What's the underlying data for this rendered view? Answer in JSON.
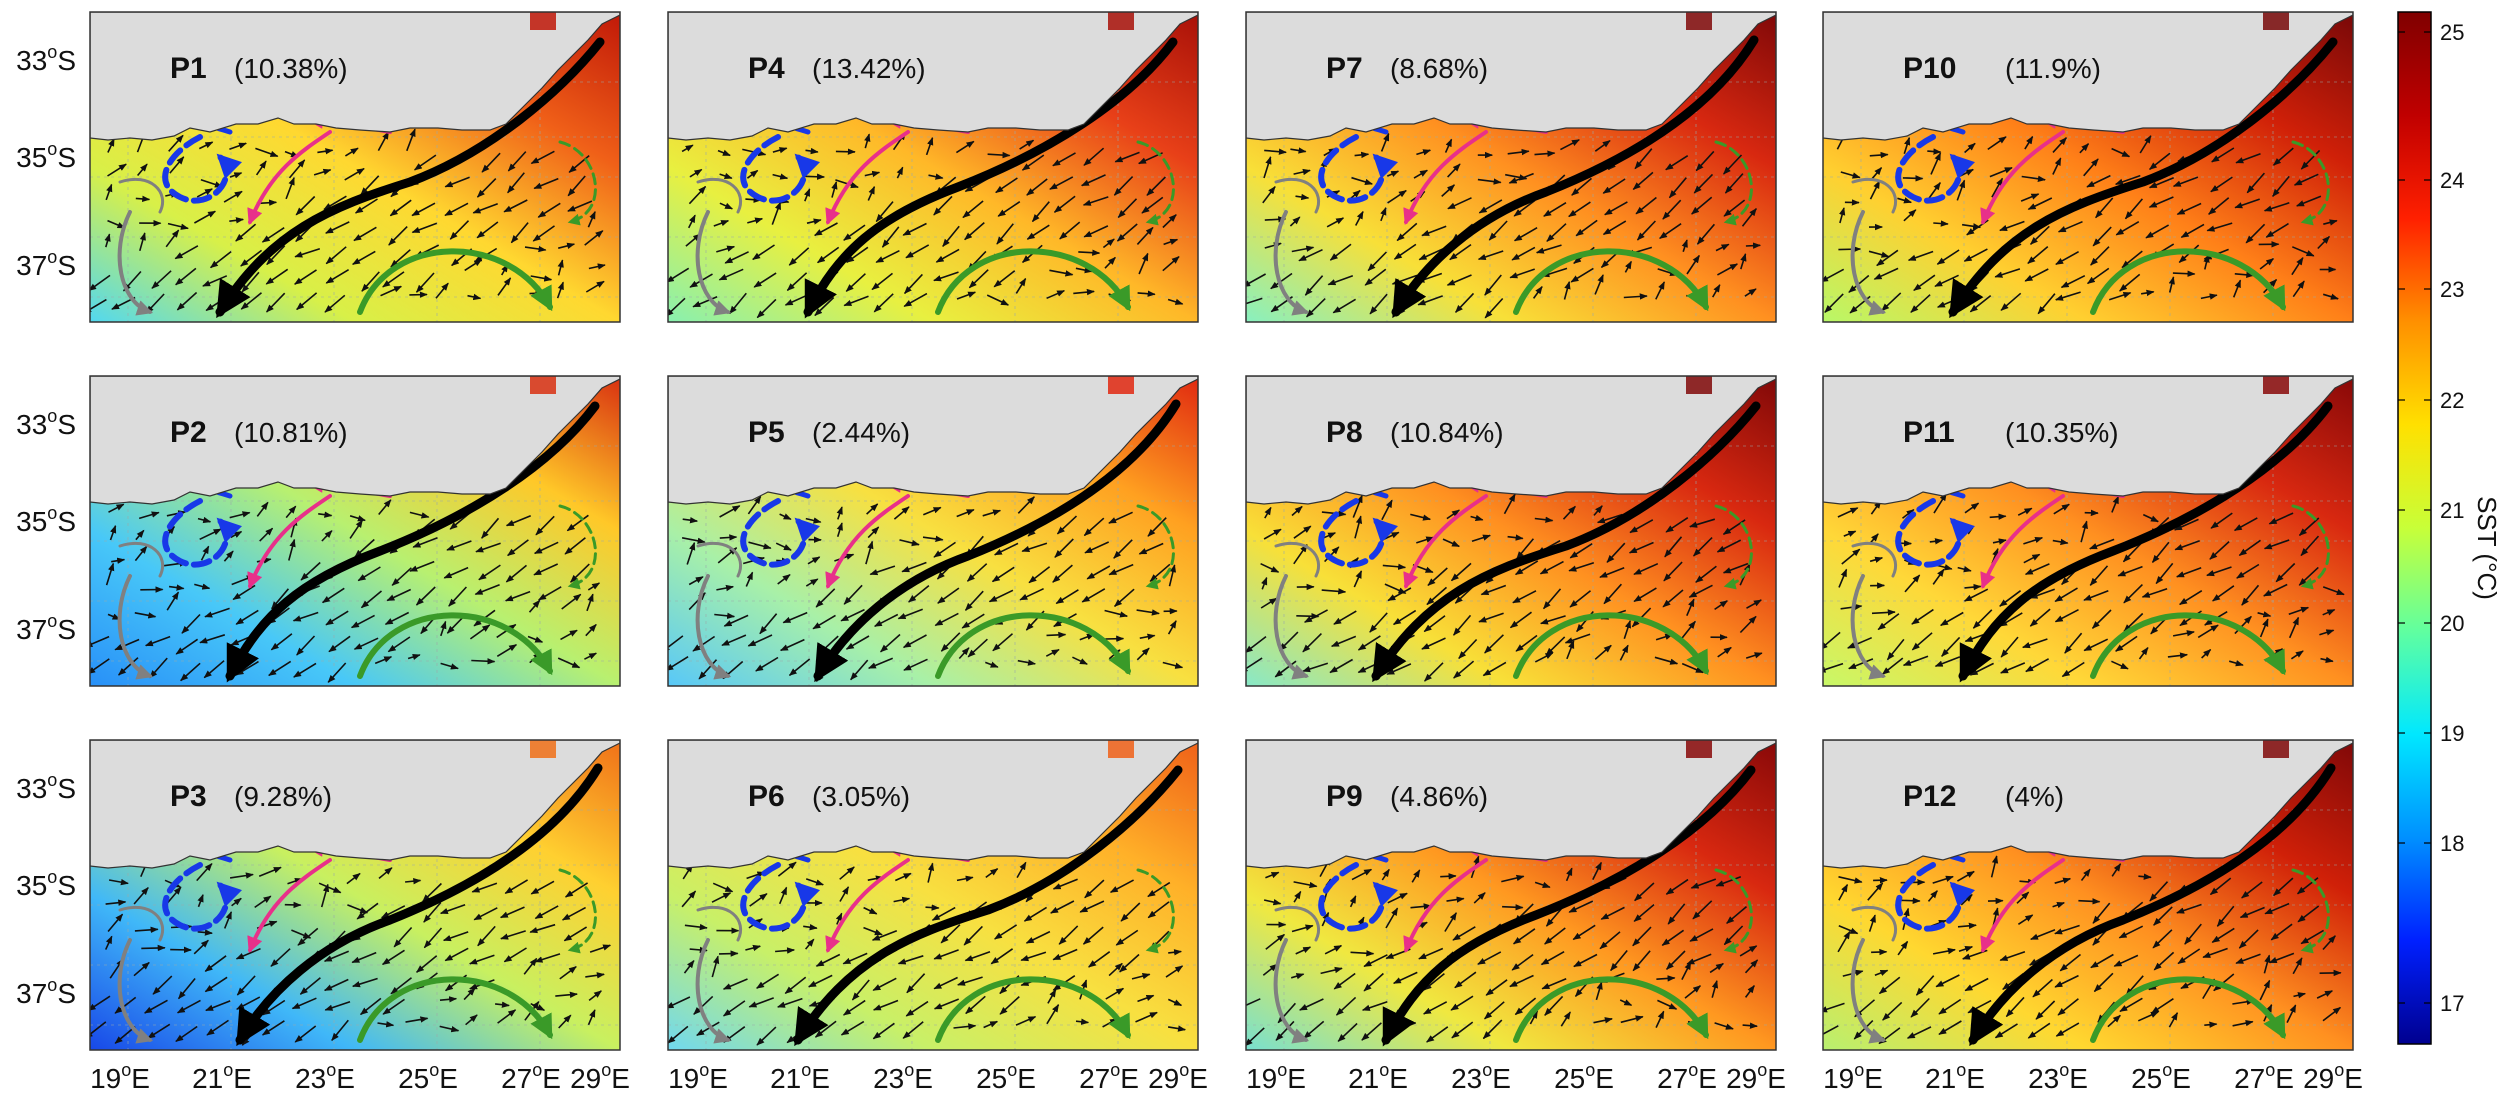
{
  "figure": {
    "colorbar": {
      "label": "SST (°C)",
      "ticks": [
        "25",
        "24",
        "23",
        "22",
        "21",
        "20",
        "19",
        "18",
        "17"
      ],
      "colors": [
        "#00008f",
        "#0020ff",
        "#0090ff",
        "#00e8ff",
        "#60ffa0",
        "#c8ff38",
        "#ffe000",
        "#ff9000",
        "#ff2000",
        "#c00000",
        "#800000"
      ]
    },
    "lat_labels": [
      {
        "base": "33",
        "sup": "o",
        "suf": "S"
      },
      {
        "base": "35",
        "sup": "o",
        "suf": "S"
      },
      {
        "base": "37",
        "sup": "o",
        "suf": "S"
      }
    ],
    "lon_labels": [
      {
        "base": "19",
        "sup": "o",
        "suf": "E"
      },
      {
        "base": "21",
        "sup": "o",
        "suf": "E"
      },
      {
        "base": "23",
        "sup": "o",
        "suf": "E"
      },
      {
        "base": "25",
        "sup": "o",
        "suf": "E"
      },
      {
        "base": "27",
        "sup": "o",
        "suf": "E"
      },
      {
        "base": "29",
        "sup": "o",
        "suf": "E"
      }
    ],
    "panels": [
      {
        "name": "P1",
        "pct": "(10.38%)",
        "palette": [
          "#52d8f0",
          "#d8f048",
          "#ffd830",
          "#f06018",
          "#c01808"
        ]
      },
      {
        "name": "P4",
        "pct": "(13.42%)",
        "palette": [
          "#88f0b0",
          "#e8f040",
          "#ffb828",
          "#e84018",
          "#a81008"
        ]
      },
      {
        "name": "P7",
        "pct": "(8.68%)",
        "palette": [
          "#88f0c0",
          "#f8e038",
          "#ff9020",
          "#d82810",
          "#800808"
        ]
      },
      {
        "name": "P10",
        "pct": "(11.9%)",
        "palette": [
          "#b8f868",
          "#ffd030",
          "#ff8018",
          "#d02008",
          "#780808"
        ]
      },
      {
        "name": "P2",
        "pct": "(10.81%)",
        "palette": [
          "#2890f8",
          "#48c8f8",
          "#b8f070",
          "#ffc828",
          "#d83010"
        ]
      },
      {
        "name": "P5",
        "pct": "(2.44%)",
        "palette": [
          "#58c8f8",
          "#a8f0a8",
          "#f8e040",
          "#ffa020",
          "#e02810"
        ]
      },
      {
        "name": "P8",
        "pct": "(10.84%)",
        "palette": [
          "#88e8c8",
          "#f8e038",
          "#ff9020",
          "#d82810",
          "#800808"
        ]
      },
      {
        "name": "P11",
        "pct": "(10.35%)",
        "palette": [
          "#c8f868",
          "#ffd838",
          "#ff9020",
          "#d82810",
          "#880808"
        ]
      },
      {
        "name": "P3",
        "pct": "(9.28%)",
        "palette": [
          "#1848e8",
          "#40b8f8",
          "#c8f060",
          "#ffd030",
          "#f07018"
        ]
      },
      {
        "name": "P6",
        "pct": "(3.05%)",
        "palette": [
          "#70d8f0",
          "#c8f068",
          "#f8e040",
          "#ffb028",
          "#f06018"
        ]
      },
      {
        "name": "P9",
        "pct": "(4.86%)",
        "palette": [
          "#78e0d0",
          "#f0e840",
          "#ff9820",
          "#d82810",
          "#880808"
        ]
      },
      {
        "name": "P12",
        "pct": "(4%)",
        "palette": [
          "#b8f070",
          "#ffd830",
          "#ff9020",
          "#d02008",
          "#800808"
        ]
      }
    ]
  }
}
